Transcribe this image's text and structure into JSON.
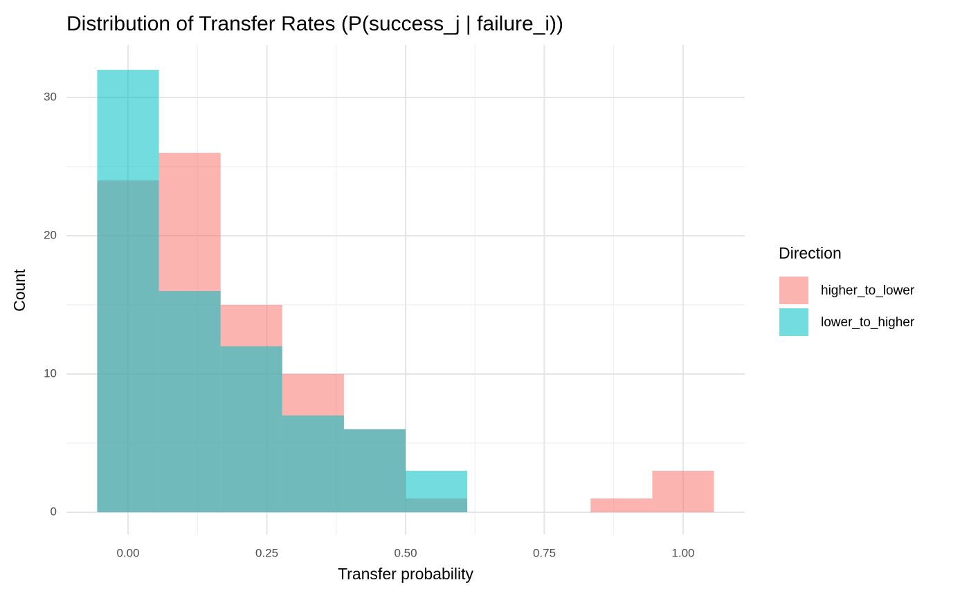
{
  "chart_data": {
    "type": "histogram",
    "title": "Distribution of Transfer Rates (P(success_j | failure_i))",
    "x_label": "Transfer probability",
    "y_label": "Count",
    "legend_title": "Direction",
    "legend_position": "right",
    "bins": [
      -0.0556,
      0.0556,
      0.1667,
      0.2778,
      0.3889,
      0.5,
      0.6111,
      0.7222,
      0.8333,
      0.9444,
      1.0556
    ],
    "series": [
      {
        "name": "higher_to_lower",
        "color": "#F8766D",
        "values": [
          24,
          26,
          15,
          10,
          6,
          1,
          0,
          0,
          1,
          3
        ]
      },
      {
        "name": "lower_to_higher",
        "color": "#00BFC4",
        "values": [
          32,
          16,
          12,
          7,
          6,
          3,
          0,
          0,
          0,
          0
        ]
      }
    ],
    "opacity": 0.55,
    "xlim": [
      -0.111,
      1.111
    ],
    "xticks": [
      {
        "value": 0,
        "label": "0.00"
      },
      {
        "value": 0.25,
        "label": "0.25"
      },
      {
        "value": 0.5,
        "label": "0.50"
      },
      {
        "value": 0.75,
        "label": "0.75"
      },
      {
        "value": 1,
        "label": "1.00"
      }
    ],
    "ylim": [
      -1.6,
      33.6
    ],
    "yticks": [
      0,
      10,
      20,
      30
    ],
    "grid": true
  }
}
